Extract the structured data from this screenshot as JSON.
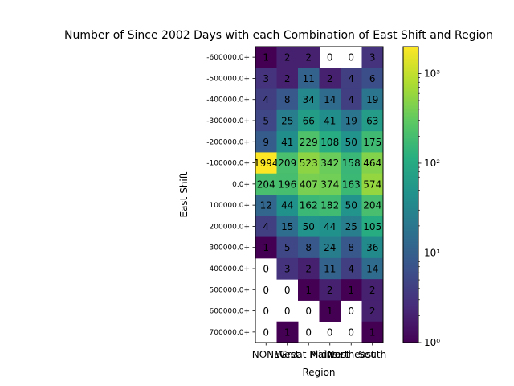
{
  "chart_data": {
    "type": "heatmap",
    "title": "Number of Since 2002 Days with each Combination of East Shift and Region",
    "xlabel": "Region",
    "ylabel": "East Shift",
    "categories": [
      "NONE",
      "West",
      "Great Plains",
      "Midwest",
      "Northeast",
      "South"
    ],
    "y_categories": [
      "-600000.0+",
      "-500000.0+",
      "-400000.0+",
      "-300000.0+",
      "-200000.0+",
      "-100000.0+",
      "0.0+",
      "100000.0+",
      "200000.0+",
      "300000.0+",
      "400000.0+",
      "500000.0+",
      "600000.0+",
      "700000.0+"
    ],
    "values": [
      [
        1,
        2,
        2,
        0,
        0,
        3
      ],
      [
        3,
        2,
        11,
        2,
        4,
        6
      ],
      [
        4,
        8,
        34,
        14,
        4,
        19
      ],
      [
        5,
        25,
        66,
        41,
        19,
        63
      ],
      [
        9,
        41,
        229,
        108,
        50,
        175
      ],
      [
        1994,
        209,
        523,
        342,
        158,
        464
      ],
      [
        204,
        196,
        407,
        374,
        163,
        574
      ],
      [
        12,
        44,
        162,
        182,
        50,
        204
      ],
      [
        4,
        15,
        50,
        44,
        25,
        105
      ],
      [
        1,
        5,
        8,
        24,
        8,
        36
      ],
      [
        0,
        3,
        2,
        11,
        4,
        14
      ],
      [
        0,
        0,
        1,
        2,
        1,
        2
      ],
      [
        0,
        0,
        0,
        1,
        0,
        2
      ],
      [
        0,
        1,
        0,
        0,
        0,
        1
      ]
    ],
    "colorbar": {
      "scale": "log",
      "min": 1,
      "max": 1994,
      "colormap": "viridis",
      "ticks": [
        {
          "value": 1,
          "label": "10⁰"
        },
        {
          "value": 10,
          "label": "10¹"
        },
        {
          "value": 100,
          "label": "10²"
        },
        {
          "value": 1000,
          "label": "10³"
        }
      ]
    }
  }
}
